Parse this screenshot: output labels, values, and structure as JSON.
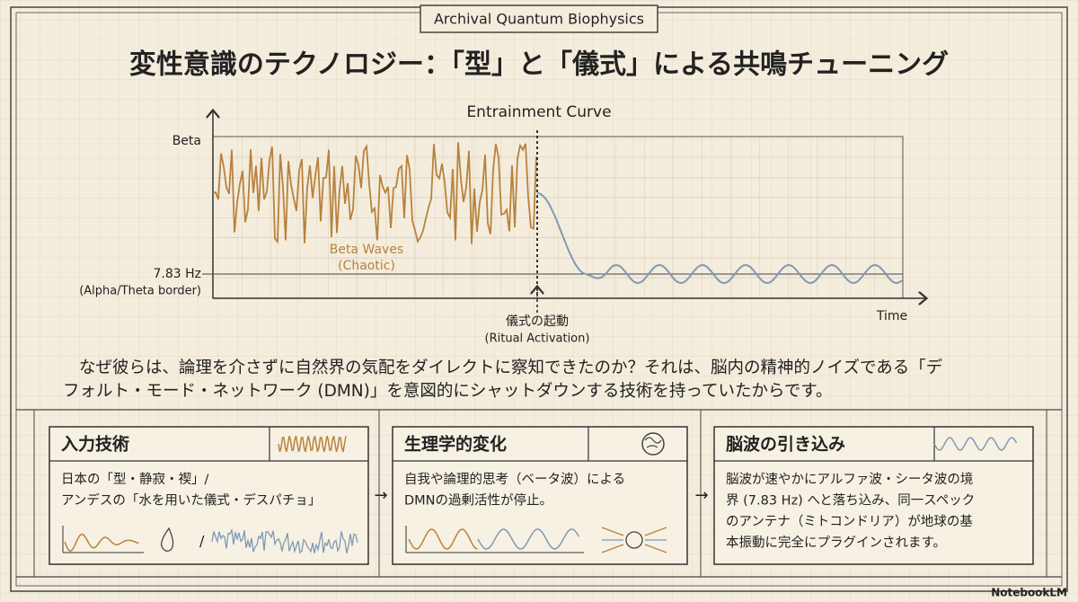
{
  "header": {
    "tag": "Archival Quantum Biophysics",
    "title": "変性意識のテクノロジー：「型」と「儀式」による共鳴チューニング"
  },
  "diagram": {
    "title": "Entrainment Curve",
    "y_top": "Beta",
    "y_mid": [
      "7.83 Hz",
      "(Alpha/Theta border)"
    ],
    "x_label": "Time",
    "wave_label": [
      "Beta Waves",
      "(Chaotic)"
    ],
    "marker_label": [
      "儀式の起動",
      "(Ritual Activation)"
    ]
  },
  "body": [
    "なぜ彼らは、論理を介さずに自然界の気配をダイレクトに察知できたのか？それは、脳内の精神的ノイズである「デ",
    "フォルト・モード・ネットワーク (DMN)」を意図的にシャットダウンする技術を持っていたからです。"
  ],
  "cards": [
    {
      "title": "入力技術",
      "lines": [
        "日本の「型・静寂・禊」/",
        "アンデスの「水を用いた儀式・デスパチョ」"
      ]
    },
    {
      "title": "生理学的変化",
      "lines": [
        "自我や論理的思考（ベータ波）による",
        "DMNの過剰活性が停止。"
      ]
    },
    {
      "title": "脳波の引き込み",
      "lines": [
        "脳波が速やかにアルファ波・シータ波の境",
        "界 (7.83 Hz) へと落ち込み、同一スペック",
        "のアンテナ（ミトコンドリア）が地球の基",
        "本振動に完全にプラグインされます。"
      ]
    }
  ],
  "footer": {
    "brand": "NotebookLM"
  }
}
